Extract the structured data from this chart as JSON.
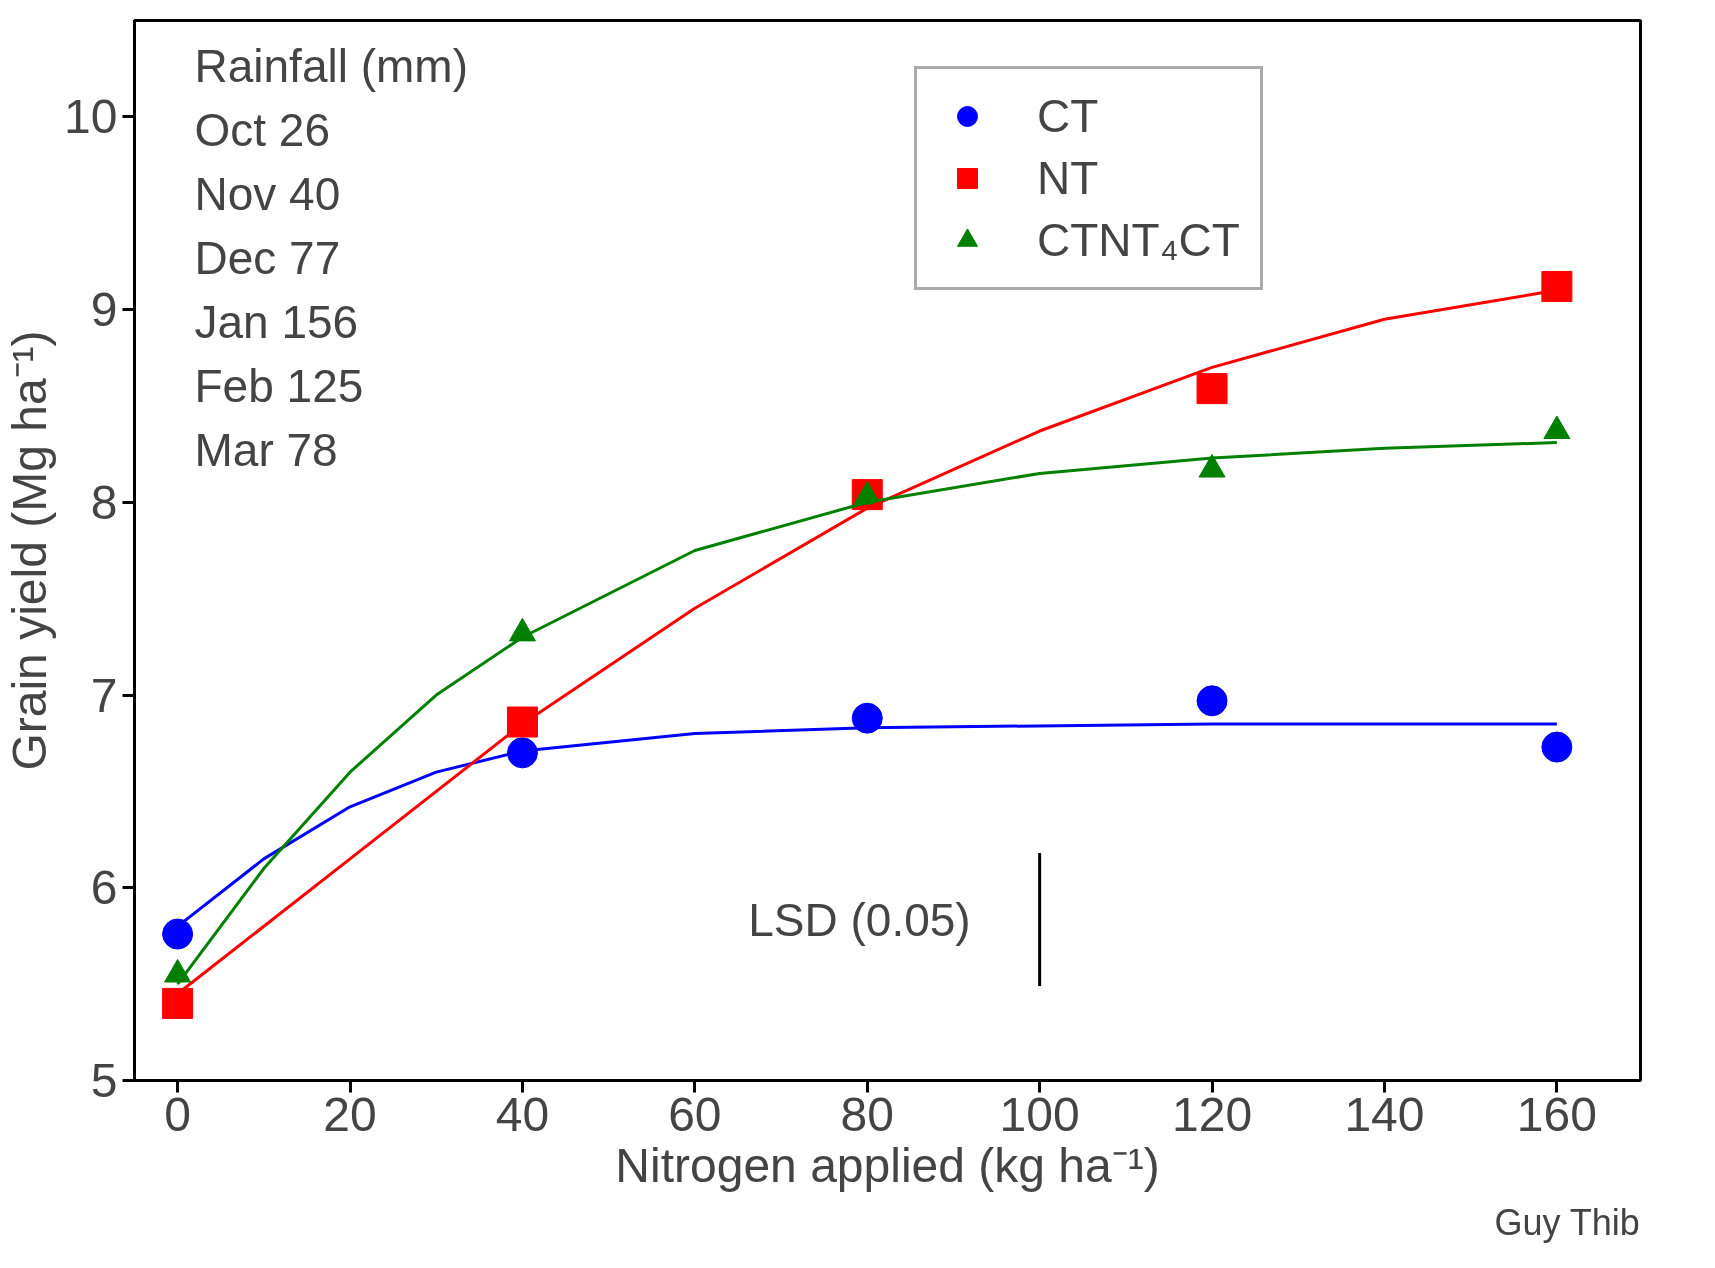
{
  "chart_data": {
    "type": "scatter",
    "xlabel": "Nitrogen applied (kg ha⁻¹)",
    "ylabel": "Grain yield (Mg ha⁻¹)",
    "x": [
      0,
      40,
      80,
      120,
      160
    ],
    "series": [
      {
        "name": "CT",
        "color": "#0000ff",
        "marker": "circle",
        "values": [
          5.76,
          6.7,
          6.88,
          6.97,
          6.73
        ]
      },
      {
        "name": "NT",
        "color": "#ff0000",
        "marker": "square",
        "values": [
          5.4,
          6.86,
          8.04,
          8.59,
          9.12
        ]
      },
      {
        "name": "CTNT₄CT",
        "color": "#008000",
        "marker": "triangle",
        "values": [
          5.55,
          7.32,
          8.03,
          8.17,
          8.37
        ]
      },
      {
        "type": "line",
        "color": "#0000ff",
        "x": [
          0,
          10,
          20,
          30,
          40,
          60,
          80,
          120,
          160
        ],
        "values": [
          5.8,
          6.15,
          6.42,
          6.6,
          6.71,
          6.8,
          6.83,
          6.85,
          6.85
        ]
      },
      {
        "type": "line",
        "color": "#ff0000",
        "x": [
          0,
          20,
          40,
          60,
          80,
          100,
          120,
          140,
          160
        ],
        "values": [
          5.45,
          6.15,
          6.85,
          7.45,
          7.97,
          8.37,
          8.7,
          8.95,
          9.1
        ]
      },
      {
        "type": "line",
        "color": "#008000",
        "x": [
          0,
          10,
          20,
          30,
          40,
          60,
          80,
          100,
          120,
          140,
          160
        ],
        "values": [
          5.5,
          6.1,
          6.6,
          7.0,
          7.3,
          7.75,
          8.0,
          8.15,
          8.23,
          8.28,
          8.31
        ]
      },
      {
        "type": "line",
        "color": "#000000",
        "x": [
          100,
          100
        ],
        "values": [
          5.49,
          6.18
        ]
      }
    ],
    "xlim": [
      -5,
      169.7
    ],
    "ylim": [
      5,
      10.5
    ],
    "xticks": [
      0,
      20,
      40,
      60,
      80,
      100,
      120,
      140,
      160
    ],
    "yticks": [
      5,
      6,
      7,
      8,
      9,
      10
    ],
    "grid": false,
    "legend": "top right",
    "annotations": [
      "Rainfall  (mm)",
      "Oct  26",
      "Nov  40",
      "Dec  77",
      "Jan  156",
      "Feb  125",
      "Mar  78",
      {
        "text": "LSD (0.05)",
        "x": 100,
        "y": 5.835
      },
      "Guy Thib"
    ]
  }
}
